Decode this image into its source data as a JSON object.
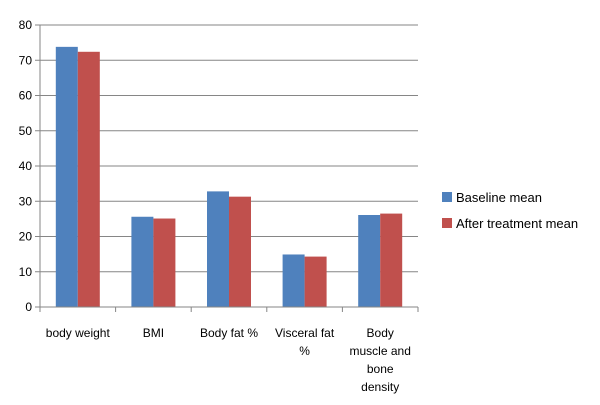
{
  "chart_data": {
    "type": "bar",
    "categories": [
      [
        "body weight"
      ],
      [
        "BMI"
      ],
      [
        "Body fat %"
      ],
      [
        "Visceral fat",
        "%"
      ],
      [
        "Body",
        "muscle and",
        "bone",
        "density"
      ]
    ],
    "series": [
      {
        "name": "Baseline mean",
        "color": "#4F81BD",
        "values": [
          73.8,
          25.6,
          32.8,
          14.9,
          26.1
        ]
      },
      {
        "name": "After treatment mean",
        "color": "#C0504D",
        "values": [
          72.4,
          25.1,
          31.3,
          14.3,
          26.5
        ]
      }
    ],
    "ylim": [
      0,
      80
    ],
    "yticks": [
      0,
      10,
      20,
      30,
      40,
      50,
      60,
      70,
      80
    ],
    "grid": true,
    "legend_position": "right"
  }
}
